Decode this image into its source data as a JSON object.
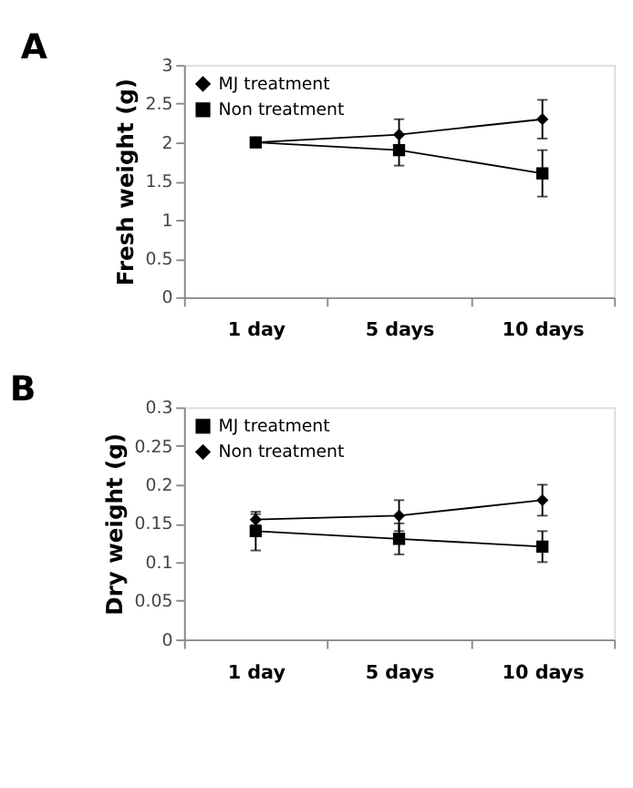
{
  "chart_data": [
    {
      "type": "line",
      "title": "A",
      "ylabel": "Fresh weight (g)",
      "categories": [
        "1 day",
        "5 days",
        "10 days"
      ],
      "ylim": [
        0,
        3
      ],
      "yticks": [
        0,
        0.5,
        1,
        1.5,
        2,
        2.5,
        3
      ],
      "grid": false,
      "legend": "top left",
      "series": [
        {
          "name": "MJ treatment",
          "color": "#000000",
          "marker": "diamond",
          "values": [
            2.0,
            2.1,
            2.3
          ],
          "errors": [
            0.05,
            0.2,
            0.25
          ]
        },
        {
          "name": "Non treatment",
          "color": "#000000",
          "marker": "square",
          "values": [
            2.0,
            1.9,
            1.6
          ],
          "errors": [
            0.05,
            0.2,
            0.3
          ]
        }
      ]
    },
    {
      "type": "line",
      "title": "B",
      "ylabel": "Dry weight (g)",
      "categories": [
        "1 day",
        "5 days",
        "10 days"
      ],
      "ylim": [
        0,
        0.3
      ],
      "yticks": [
        0,
        0.05,
        0.1,
        0.15,
        0.2,
        0.25,
        0.3
      ],
      "grid": false,
      "legend": "top left",
      "series": [
        {
          "name": "MJ treatment",
          "color": "#000000",
          "marker": "square",
          "values": [
            0.14,
            0.13,
            0.12
          ],
          "errors": [
            0.025,
            0.02,
            0.02
          ]
        },
        {
          "name": "Non treatment",
          "color": "#000000",
          "marker": "diamond",
          "values": [
            0.155,
            0.16,
            0.18
          ],
          "errors": [
            0.007,
            0.02,
            0.02
          ]
        }
      ]
    }
  ]
}
